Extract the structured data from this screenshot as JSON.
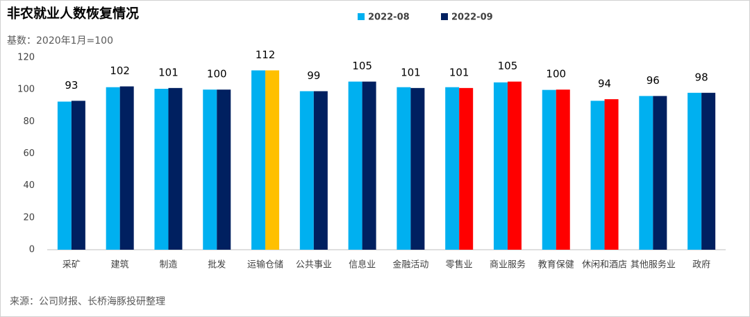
{
  "chart_data": {
    "type": "bar",
    "title": "非农就业人数恢复情况",
    "subtitle": "基数：2020年1月=100",
    "source": "来源：公司财报、长桥海豚投研整理",
    "categories": [
      "采矿",
      "建筑",
      "制造",
      "批发",
      "运输仓储",
      "公共事业",
      "信息业",
      "金融活动",
      "零售业",
      "商业服务",
      "教育保健",
      "休闲和酒店",
      "其他服务业",
      "政府"
    ],
    "series": [
      {
        "name": "2022-08",
        "color": "#00b0f0",
        "values": [
          92.5,
          101.5,
          100.5,
          100,
          112,
          99,
          105,
          101.5,
          101.5,
          104.5,
          99.8,
          93,
          96,
          98
        ]
      },
      {
        "name": "2022-09",
        "color": "#002060",
        "colors": [
          "#002060",
          "#002060",
          "#002060",
          "#002060",
          "#ffc000",
          "#002060",
          "#002060",
          "#002060",
          "#ff0000",
          "#ff0000",
          "#ff0000",
          "#ff0000",
          "#002060",
          "#002060"
        ],
        "values": [
          93,
          102,
          101,
          100,
          112,
          99,
          105,
          101,
          101,
          105,
          100,
          94,
          96,
          98
        ],
        "show_labels": true
      }
    ],
    "ylim": [
      0,
      120
    ],
    "yticks": [
      0,
      20,
      40,
      60,
      80,
      100,
      120
    ],
    "grid": false
  }
}
